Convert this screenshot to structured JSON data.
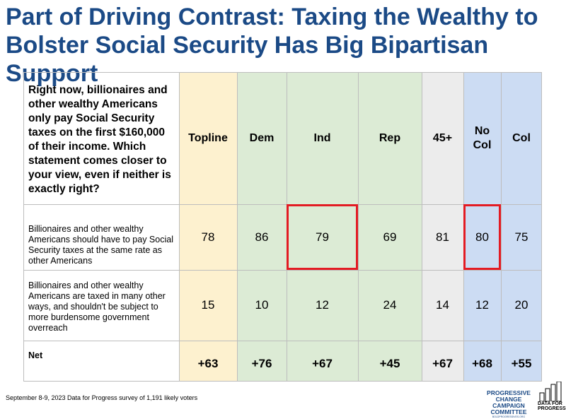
{
  "title": {
    "line1": "Part of Driving Contrast: Taxing the Wealthy to",
    "line2": "Bolster Social Security Has Big Bipartisan Support"
  },
  "chart_data": {
    "type": "table",
    "question": "Right now, billionaires and other wealthy Americans only pay Social Security taxes on the first $160,000 of their income. Which statement comes closer to your view, even if neither is exactly right?",
    "columns": [
      "Topline",
      "Dem",
      "Ind",
      "Rep",
      "45+",
      "No Col",
      "Col"
    ],
    "column_colors": [
      "#fdf1cf",
      "#dcebd5",
      "#dcebd5",
      "#dcebd5",
      "#ececec",
      "#ccdcf3",
      "#ccdcf3"
    ],
    "rows": [
      {
        "label": "Billionaires and other wealthy Americans should have to pay Social Security taxes at the same rate as other Americans",
        "values": [
          "78",
          "86",
          "79",
          "69",
          "81",
          "80",
          "75"
        ]
      },
      {
        "label": "Billionaires and other wealthy Americans are taxed in many other ways, and shouldn't be subject to more burdensome government overreach",
        "values": [
          "15",
          "10",
          "12",
          "24",
          "14",
          "12",
          "20"
        ]
      },
      {
        "label": "Net",
        "values": [
          "+63",
          "+76",
          "+67",
          "+45",
          "+67",
          "+68",
          "+55"
        ]
      }
    ],
    "highlighted": [
      {
        "row": 0,
        "column": "Ind"
      },
      {
        "row": 0,
        "column": "No Col"
      }
    ],
    "highlight_color": "#e31b23"
  },
  "footer": {
    "source": "September 8-9, 2023 Data for Progress survey of 1,191 likely voters"
  },
  "logos": {
    "pccc_line1": "PROGRESSIVE CHANGE",
    "pccc_line2": "CAMPAIGN COMMITTEE",
    "pccc_url": "BOLDPROGRESSIVES.ORG",
    "dfp_line1": "DATA FOR",
    "dfp_line2": "PROGRESS"
  }
}
